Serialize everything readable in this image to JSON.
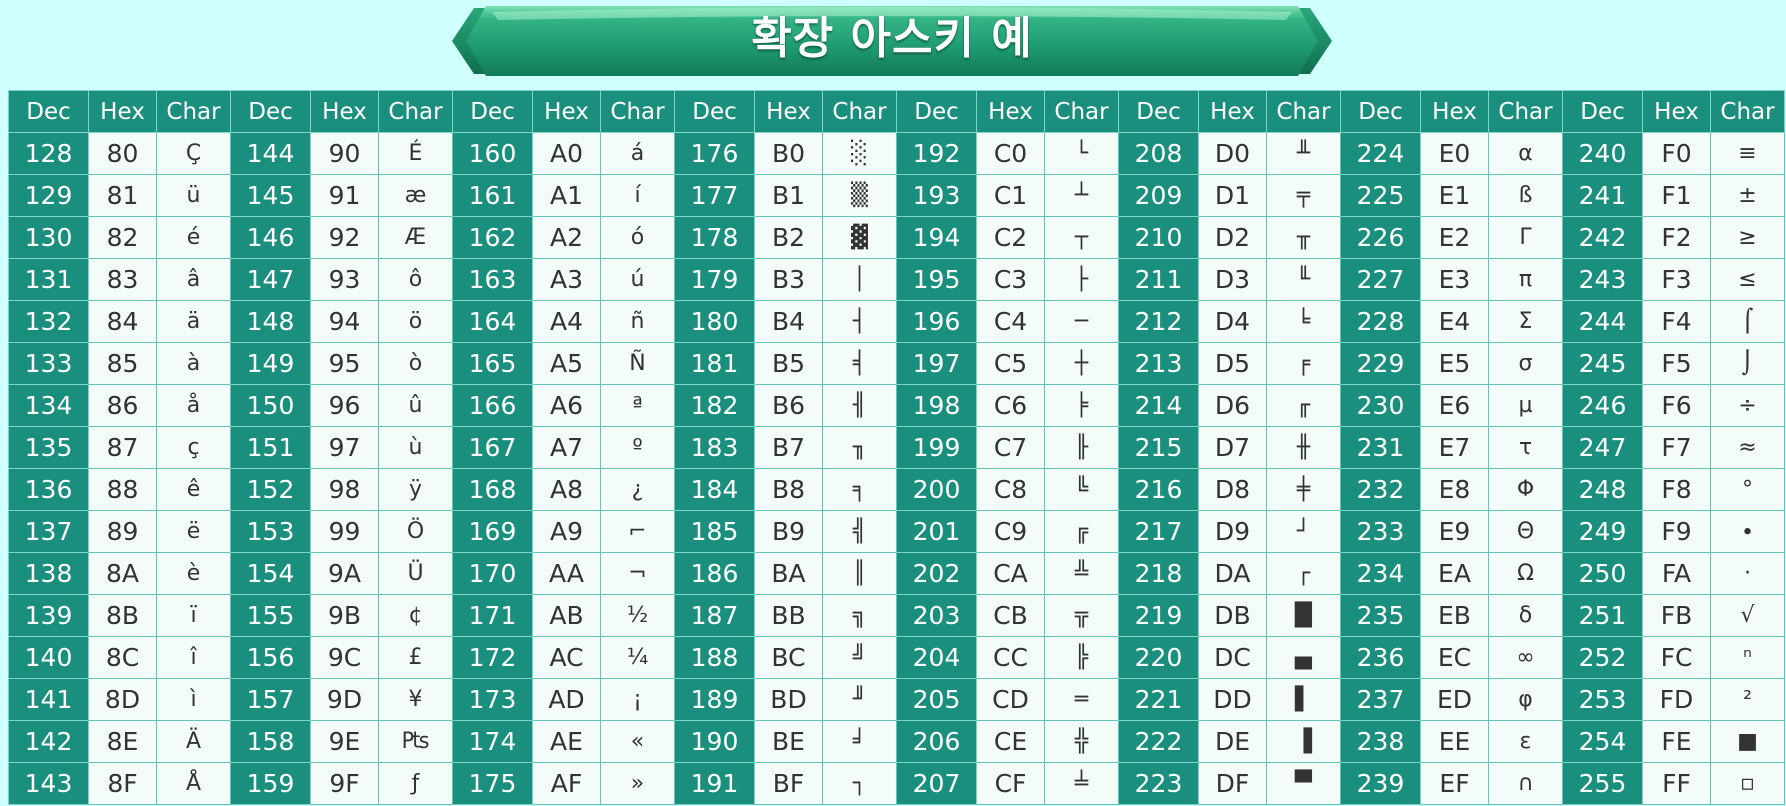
{
  "title": "확장 아스키 예",
  "colors": {
    "background": "#cfffff",
    "header_bg": "#1b8f7d",
    "dec_bg": "#1b8f7d",
    "cell_bg": "#f3fcf8",
    "border": "#5ec7b8",
    "banner_green": "#1f9c73"
  },
  "headers": [
    "Dec",
    "Hex",
    "Char"
  ],
  "groups": [
    {
      "rows": [
        [
          "128",
          "80",
          "Ç"
        ],
        [
          "129",
          "81",
          "ü"
        ],
        [
          "130",
          "82",
          "é"
        ],
        [
          "131",
          "83",
          "â"
        ],
        [
          "132",
          "84",
          "ä"
        ],
        [
          "133",
          "85",
          "à"
        ],
        [
          "134",
          "86",
          "å"
        ],
        [
          "135",
          "87",
          "ç"
        ],
        [
          "136",
          "88",
          "ê"
        ],
        [
          "137",
          "89",
          "ë"
        ],
        [
          "138",
          "8A",
          "è"
        ],
        [
          "139",
          "8B",
          "ï"
        ],
        [
          "140",
          "8C",
          "î"
        ],
        [
          "141",
          "8D",
          "ì"
        ],
        [
          "142",
          "8E",
          "Ä"
        ],
        [
          "143",
          "8F",
          "Å"
        ]
      ]
    },
    {
      "rows": [
        [
          "144",
          "90",
          "É"
        ],
        [
          "145",
          "91",
          "æ"
        ],
        [
          "146",
          "92",
          "Æ"
        ],
        [
          "147",
          "93",
          "ô"
        ],
        [
          "148",
          "94",
          "ö"
        ],
        [
          "149",
          "95",
          "ò"
        ],
        [
          "150",
          "96",
          "û"
        ],
        [
          "151",
          "97",
          "ù"
        ],
        [
          "152",
          "98",
          "ÿ"
        ],
        [
          "153",
          "99",
          "Ö"
        ],
        [
          "154",
          "9A",
          "Ü"
        ],
        [
          "155",
          "9B",
          "¢"
        ],
        [
          "156",
          "9C",
          "£"
        ],
        [
          "157",
          "9D",
          "¥"
        ],
        [
          "158",
          "9E",
          "₧"
        ],
        [
          "159",
          "9F",
          "ƒ"
        ]
      ]
    },
    {
      "rows": [
        [
          "160",
          "A0",
          "á"
        ],
        [
          "161",
          "A1",
          "í"
        ],
        [
          "162",
          "A2",
          "ó"
        ],
        [
          "163",
          "A3",
          "ú"
        ],
        [
          "164",
          "A4",
          "ñ"
        ],
        [
          "165",
          "A5",
          "Ñ"
        ],
        [
          "166",
          "A6",
          "ª"
        ],
        [
          "167",
          "A7",
          "º"
        ],
        [
          "168",
          "A8",
          "¿"
        ],
        [
          "169",
          "A9",
          "⌐"
        ],
        [
          "170",
          "AA",
          "¬"
        ],
        [
          "171",
          "AB",
          "½"
        ],
        [
          "172",
          "AC",
          "¼"
        ],
        [
          "173",
          "AD",
          "¡"
        ],
        [
          "174",
          "AE",
          "«"
        ],
        [
          "175",
          "AF",
          "»"
        ]
      ]
    },
    {
      "rows": [
        [
          "176",
          "B0",
          "░"
        ],
        [
          "177",
          "B1",
          "▒"
        ],
        [
          "178",
          "B2",
          "▓"
        ],
        [
          "179",
          "B3",
          "│"
        ],
        [
          "180",
          "B4",
          "┤"
        ],
        [
          "181",
          "B5",
          "╡"
        ],
        [
          "182",
          "B6",
          "╢"
        ],
        [
          "183",
          "B7",
          "╖"
        ],
        [
          "184",
          "B8",
          "╕"
        ],
        [
          "185",
          "B9",
          "╣"
        ],
        [
          "186",
          "BA",
          "║"
        ],
        [
          "187",
          "BB",
          "╗"
        ],
        [
          "188",
          "BC",
          "╝"
        ],
        [
          "189",
          "BD",
          "╜"
        ],
        [
          "190",
          "BE",
          "╛"
        ],
        [
          "191",
          "BF",
          "┐"
        ]
      ]
    },
    {
      "rows": [
        [
          "192",
          "C0",
          "└"
        ],
        [
          "193",
          "C1",
          "┴"
        ],
        [
          "194",
          "C2",
          "┬"
        ],
        [
          "195",
          "C3",
          "├"
        ],
        [
          "196",
          "C4",
          "─"
        ],
        [
          "197",
          "C5",
          "┼"
        ],
        [
          "198",
          "C6",
          "╞"
        ],
        [
          "199",
          "C7",
          "╟"
        ],
        [
          "200",
          "C8",
          "╚"
        ],
        [
          "201",
          "C9",
          "╔"
        ],
        [
          "202",
          "CA",
          "╩"
        ],
        [
          "203",
          "CB",
          "╦"
        ],
        [
          "204",
          "CC",
          "╠"
        ],
        [
          "205",
          "CD",
          "═"
        ],
        [
          "206",
          "CE",
          "╬"
        ],
        [
          "207",
          "CF",
          "╧"
        ]
      ]
    },
    {
      "rows": [
        [
          "208",
          "D0",
          "╨"
        ],
        [
          "209",
          "D1",
          "╤"
        ],
        [
          "210",
          "D2",
          "╥"
        ],
        [
          "211",
          "D3",
          "╙"
        ],
        [
          "212",
          "D4",
          "╘"
        ],
        [
          "213",
          "D5",
          "╒"
        ],
        [
          "214",
          "D6",
          "╓"
        ],
        [
          "215",
          "D7",
          "╫"
        ],
        [
          "216",
          "D8",
          "╪"
        ],
        [
          "217",
          "D9",
          "┘"
        ],
        [
          "218",
          "DA",
          "┌"
        ],
        [
          "219",
          "DB",
          "█"
        ],
        [
          "220",
          "DC",
          "▄"
        ],
        [
          "221",
          "DD",
          "▌"
        ],
        [
          "222",
          "DE",
          "▐"
        ],
        [
          "223",
          "DF",
          "▀"
        ]
      ]
    },
    {
      "rows": [
        [
          "224",
          "E0",
          "α"
        ],
        [
          "225",
          "E1",
          "ß"
        ],
        [
          "226",
          "E2",
          "Γ"
        ],
        [
          "227",
          "E3",
          "π"
        ],
        [
          "228",
          "E4",
          "Σ"
        ],
        [
          "229",
          "E5",
          "σ"
        ],
        [
          "230",
          "E6",
          "µ"
        ],
        [
          "231",
          "E7",
          "τ"
        ],
        [
          "232",
          "E8",
          "Φ"
        ],
        [
          "233",
          "E9",
          "Θ"
        ],
        [
          "234",
          "EA",
          "Ω"
        ],
        [
          "235",
          "EB",
          "δ"
        ],
        [
          "236",
          "EC",
          "∞"
        ],
        [
          "237",
          "ED",
          "φ"
        ],
        [
          "238",
          "EE",
          "ε"
        ],
        [
          "239",
          "EF",
          "∩"
        ]
      ]
    },
    {
      "rows": [
        [
          "240",
          "F0",
          "≡"
        ],
        [
          "241",
          "F1",
          "±"
        ],
        [
          "242",
          "F2",
          "≥"
        ],
        [
          "243",
          "F3",
          "≤"
        ],
        [
          "244",
          "F4",
          "⌠"
        ],
        [
          "245",
          "F5",
          "⌡"
        ],
        [
          "246",
          "F6",
          "÷"
        ],
        [
          "247",
          "F7",
          "≈"
        ],
        [
          "248",
          "F8",
          "°"
        ],
        [
          "249",
          "F9",
          "∙"
        ],
        [
          "250",
          "FA",
          "·"
        ],
        [
          "251",
          "FB",
          "√"
        ],
        [
          "252",
          "FC",
          "ⁿ"
        ],
        [
          "253",
          "FD",
          "²"
        ],
        [
          "254",
          "FE",
          "■"
        ],
        [
          "255",
          "FF",
          "▫"
        ]
      ]
    }
  ]
}
